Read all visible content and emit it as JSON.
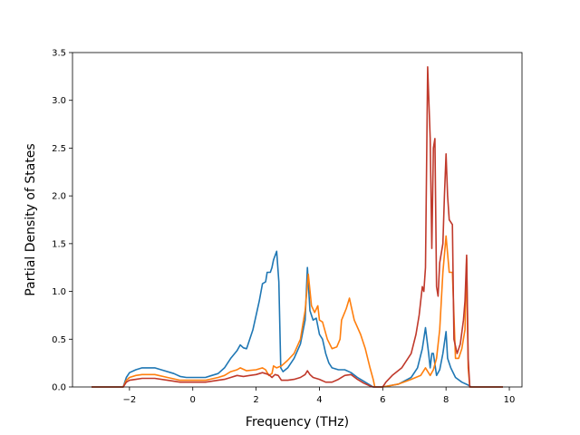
{
  "chart_data": {
    "type": "line",
    "title": "",
    "xlabel": "Frequency (THz)",
    "ylabel": "Partial Density of States",
    "xlim": [
      -3.8,
      10.4
    ],
    "ylim": [
      0,
      3.5
    ],
    "xticks": [
      -2,
      0,
      2,
      4,
      6,
      8,
      10
    ],
    "xtick_labels": [
      "−2",
      "0",
      "2",
      "4",
      "6",
      "8",
      "10"
    ],
    "yticks": [
      0,
      0.5,
      1,
      1.5,
      2,
      2.5,
      3,
      3.5
    ],
    "ytick_labels": [
      "0.0",
      "0.5",
      "1.0",
      "1.5",
      "2.0",
      "2.5",
      "3.0",
      "3.5"
    ],
    "grid": false,
    "series": [
      {
        "color": "#1f77b4",
        "points": [
          [
            -3.2,
            0
          ],
          [
            -2.2,
            0
          ],
          [
            -2.1,
            0.1
          ],
          [
            -2.0,
            0.15
          ],
          [
            -1.8,
            0.18
          ],
          [
            -1.6,
            0.2
          ],
          [
            -1.2,
            0.2
          ],
          [
            -1.0,
            0.18
          ],
          [
            -0.6,
            0.14
          ],
          [
            -0.4,
            0.11
          ],
          [
            -0.2,
            0.1
          ],
          [
            0.0,
            0.1
          ],
          [
            0.4,
            0.1
          ],
          [
            0.6,
            0.12
          ],
          [
            0.8,
            0.14
          ],
          [
            1.0,
            0.2
          ],
          [
            1.2,
            0.3
          ],
          [
            1.4,
            0.38
          ],
          [
            1.5,
            0.44
          ],
          [
            1.6,
            0.41
          ],
          [
            1.7,
            0.4
          ],
          [
            1.8,
            0.5
          ],
          [
            1.9,
            0.6
          ],
          [
            2.0,
            0.75
          ],
          [
            2.1,
            0.9
          ],
          [
            2.2,
            1.08
          ],
          [
            2.3,
            1.1
          ],
          [
            2.35,
            1.2
          ],
          [
            2.45,
            1.2
          ],
          [
            2.5,
            1.25
          ],
          [
            2.55,
            1.33
          ],
          [
            2.65,
            1.42
          ],
          [
            2.72,
            1.1
          ],
          [
            2.78,
            0.2
          ],
          [
            2.85,
            0.16
          ],
          [
            3.0,
            0.2
          ],
          [
            3.2,
            0.3
          ],
          [
            3.4,
            0.45
          ],
          [
            3.55,
            0.7
          ],
          [
            3.62,
            1.25
          ],
          [
            3.7,
            0.8
          ],
          [
            3.8,
            0.7
          ],
          [
            3.9,
            0.72
          ],
          [
            4.0,
            0.55
          ],
          [
            4.1,
            0.5
          ],
          [
            4.2,
            0.35
          ],
          [
            4.3,
            0.25
          ],
          [
            4.4,
            0.2
          ],
          [
            4.6,
            0.18
          ],
          [
            4.8,
            0.18
          ],
          [
            5.0,
            0.15
          ],
          [
            5.2,
            0.1
          ],
          [
            5.4,
            0.06
          ],
          [
            5.6,
            0.02
          ],
          [
            5.7,
            0
          ],
          [
            6.0,
            0
          ],
          [
            6.5,
            0.03
          ],
          [
            6.9,
            0.1
          ],
          [
            7.1,
            0.2
          ],
          [
            7.25,
            0.4
          ],
          [
            7.35,
            0.62
          ],
          [
            7.45,
            0.35
          ],
          [
            7.5,
            0.2
          ],
          [
            7.55,
            0.35
          ],
          [
            7.6,
            0.35
          ],
          [
            7.7,
            0.12
          ],
          [
            7.8,
            0.18
          ],
          [
            7.9,
            0.35
          ],
          [
            8.0,
            0.58
          ],
          [
            8.05,
            0.3
          ],
          [
            8.15,
            0.2
          ],
          [
            8.3,
            0.1
          ],
          [
            8.5,
            0.05
          ],
          [
            8.7,
            0.02
          ],
          [
            8.8,
            0
          ],
          [
            9.8,
            0
          ]
        ]
      },
      {
        "color": "#ff7f0e",
        "points": [
          [
            -3.2,
            0
          ],
          [
            -2.2,
            0
          ],
          [
            -2.1,
            0.07
          ],
          [
            -2.0,
            0.1
          ],
          [
            -1.8,
            0.12
          ],
          [
            -1.6,
            0.13
          ],
          [
            -1.2,
            0.13
          ],
          [
            -0.8,
            0.1
          ],
          [
            -0.4,
            0.07
          ],
          [
            0.0,
            0.07
          ],
          [
            0.4,
            0.07
          ],
          [
            0.8,
            0.1
          ],
          [
            1.0,
            0.12
          ],
          [
            1.2,
            0.16
          ],
          [
            1.4,
            0.18
          ],
          [
            1.5,
            0.2
          ],
          [
            1.7,
            0.17
          ],
          [
            2.0,
            0.18
          ],
          [
            2.2,
            0.2
          ],
          [
            2.3,
            0.18
          ],
          [
            2.4,
            0.12
          ],
          [
            2.5,
            0.14
          ],
          [
            2.55,
            0.22
          ],
          [
            2.65,
            0.2
          ],
          [
            2.8,
            0.22
          ],
          [
            3.0,
            0.28
          ],
          [
            3.2,
            0.35
          ],
          [
            3.4,
            0.5
          ],
          [
            3.55,
            0.8
          ],
          [
            3.65,
            1.18
          ],
          [
            3.75,
            0.85
          ],
          [
            3.85,
            0.78
          ],
          [
            3.95,
            0.85
          ],
          [
            4.0,
            0.7
          ],
          [
            4.1,
            0.68
          ],
          [
            4.25,
            0.5
          ],
          [
            4.4,
            0.4
          ],
          [
            4.55,
            0.42
          ],
          [
            4.65,
            0.5
          ],
          [
            4.7,
            0.7
          ],
          [
            4.85,
            0.82
          ],
          [
            4.95,
            0.93
          ],
          [
            5.0,
            0.85
          ],
          [
            5.1,
            0.7
          ],
          [
            5.3,
            0.55
          ],
          [
            5.45,
            0.4
          ],
          [
            5.6,
            0.2
          ],
          [
            5.7,
            0.08
          ],
          [
            5.75,
            0
          ],
          [
            6.0,
            0
          ],
          [
            6.5,
            0.03
          ],
          [
            6.9,
            0.08
          ],
          [
            7.2,
            0.12
          ],
          [
            7.35,
            0.2
          ],
          [
            7.5,
            0.12
          ],
          [
            7.6,
            0.18
          ],
          [
            7.7,
            0.3
          ],
          [
            7.8,
            0.6
          ],
          [
            7.9,
            1.2
          ],
          [
            8.0,
            1.58
          ],
          [
            8.1,
            1.2
          ],
          [
            8.2,
            1.2
          ],
          [
            8.3,
            0.3
          ],
          [
            8.4,
            0.3
          ],
          [
            8.5,
            0.4
          ],
          [
            8.6,
            0.6
          ],
          [
            8.65,
            1.35
          ],
          [
            8.7,
            0.2
          ],
          [
            8.75,
            0
          ],
          [
            9.8,
            0
          ]
        ]
      },
      {
        "color": "#c0392b",
        "points": [
          [
            -3.2,
            0
          ],
          [
            -2.2,
            0
          ],
          [
            -2.1,
            0.05
          ],
          [
            -2.0,
            0.07
          ],
          [
            -1.8,
            0.08
          ],
          [
            -1.6,
            0.09
          ],
          [
            -1.2,
            0.09
          ],
          [
            -0.8,
            0.07
          ],
          [
            -0.4,
            0.05
          ],
          [
            0.0,
            0.05
          ],
          [
            0.4,
            0.05
          ],
          [
            0.8,
            0.07
          ],
          [
            1.0,
            0.08
          ],
          [
            1.2,
            0.1
          ],
          [
            1.4,
            0.12
          ],
          [
            1.6,
            0.11
          ],
          [
            1.8,
            0.12
          ],
          [
            2.0,
            0.13
          ],
          [
            2.2,
            0.15
          ],
          [
            2.4,
            0.13
          ],
          [
            2.5,
            0.1
          ],
          [
            2.6,
            0.13
          ],
          [
            2.7,
            0.12
          ],
          [
            2.8,
            0.07
          ],
          [
            3.0,
            0.07
          ],
          [
            3.2,
            0.08
          ],
          [
            3.4,
            0.1
          ],
          [
            3.55,
            0.13
          ],
          [
            3.62,
            0.17
          ],
          [
            3.7,
            0.13
          ],
          [
            3.8,
            0.1
          ],
          [
            4.0,
            0.08
          ],
          [
            4.2,
            0.05
          ],
          [
            4.4,
            0.05
          ],
          [
            4.6,
            0.08
          ],
          [
            4.8,
            0.12
          ],
          [
            5.0,
            0.13
          ],
          [
            5.2,
            0.08
          ],
          [
            5.4,
            0.04
          ],
          [
            5.6,
            0.01
          ],
          [
            5.7,
            0
          ],
          [
            6.0,
            0
          ],
          [
            6.1,
            0.05
          ],
          [
            6.3,
            0.12
          ],
          [
            6.6,
            0.2
          ],
          [
            6.9,
            0.35
          ],
          [
            7.05,
            0.55
          ],
          [
            7.15,
            0.75
          ],
          [
            7.25,
            1.05
          ],
          [
            7.3,
            1.0
          ],
          [
            7.35,
            1.25
          ],
          [
            7.42,
            3.35
          ],
          [
            7.5,
            2.6
          ],
          [
            7.55,
            1.45
          ],
          [
            7.6,
            2.5
          ],
          [
            7.65,
            2.6
          ],
          [
            7.7,
            1.05
          ],
          [
            7.75,
            0.95
          ],
          [
            7.8,
            1.3
          ],
          [
            7.9,
            1.5
          ],
          [
            7.95,
            2.0
          ],
          [
            8.0,
            2.44
          ],
          [
            8.05,
            2.0
          ],
          [
            8.1,
            1.75
          ],
          [
            8.2,
            1.7
          ],
          [
            8.25,
            0.5
          ],
          [
            8.35,
            0.35
          ],
          [
            8.45,
            0.45
          ],
          [
            8.55,
            0.7
          ],
          [
            8.6,
            0.9
          ],
          [
            8.65,
            1.38
          ],
          [
            8.7,
            0.3
          ],
          [
            8.75,
            0
          ],
          [
            9.8,
            0
          ]
        ]
      }
    ]
  }
}
